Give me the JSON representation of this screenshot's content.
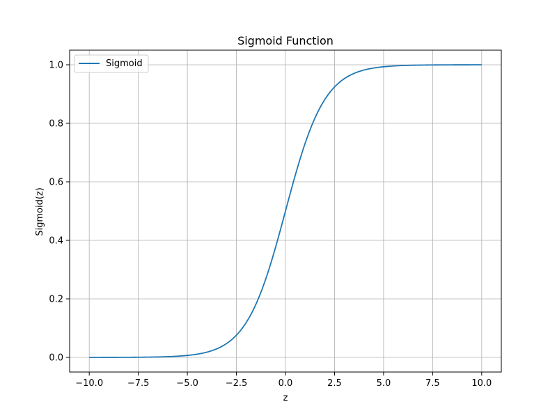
{
  "chart_data": {
    "type": "line",
    "title": "Sigmoid Function",
    "xlabel": "z",
    "ylabel": "Sigmoid(z)",
    "xlim": [
      -11,
      11
    ],
    "ylim": [
      -0.05,
      1.05
    ],
    "grid": true,
    "legend": "top-left",
    "x_ticks": [
      -10.0,
      -7.5,
      -5.0,
      -2.5,
      0.0,
      2.5,
      5.0,
      7.5,
      10.0
    ],
    "x_tick_labels": [
      "−10.0",
      "−7.5",
      "−5.0",
      "−2.5",
      "0.0",
      "2.5",
      "5.0",
      "7.5",
      "10.0"
    ],
    "y_ticks": [
      0.0,
      0.2,
      0.4,
      0.6,
      0.8,
      1.0
    ],
    "y_tick_labels": [
      "0.0",
      "0.2",
      "0.4",
      "0.6",
      "0.8",
      "1.0"
    ],
    "series": [
      {
        "name": "Sigmoid",
        "color": "#1f77b4",
        "x": [
          -10,
          -9,
          -8,
          -7,
          -6,
          -5,
          -4.5,
          -4,
          -3.5,
          -3,
          -2.5,
          -2,
          -1.5,
          -1,
          -0.5,
          0,
          0.5,
          1,
          1.5,
          2,
          2.5,
          3,
          3.5,
          4,
          4.5,
          5,
          6,
          7,
          8,
          9,
          10
        ],
        "y": [
          5e-05,
          0.00012,
          0.00034,
          0.00091,
          0.00247,
          0.00669,
          0.01099,
          0.01799,
          0.02931,
          0.04743,
          0.07586,
          0.1192,
          0.18243,
          0.26894,
          0.37754,
          0.5,
          0.62246,
          0.73106,
          0.81757,
          0.8808,
          0.92414,
          0.95257,
          0.97069,
          0.98201,
          0.98901,
          0.99331,
          0.99753,
          0.99909,
          0.99966,
          0.99988,
          0.99995
        ]
      }
    ]
  }
}
